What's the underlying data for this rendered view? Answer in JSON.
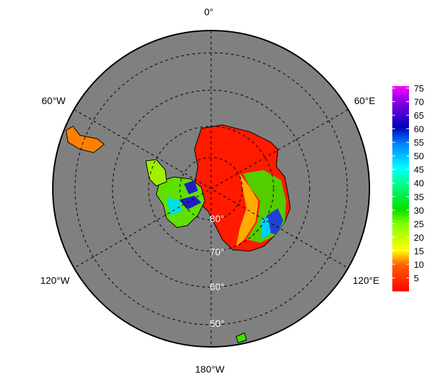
{
  "map": {
    "projection": "south polar stereographic",
    "meridian_labels": {
      "top": "0°",
      "left_upper": "60°W",
      "right_upper": "60°E",
      "left_lower": "120°W",
      "right_lower": "120°E",
      "bottom": "180°W"
    },
    "latitude_labels": [
      "80°",
      "70°",
      "60°",
      "50°"
    ],
    "background_color": "#808080"
  },
  "colorbar": {
    "ticks": [
      "75",
      "70",
      "65",
      "60",
      "55",
      "50",
      "45",
      "40",
      "35",
      "30",
      "25",
      "20",
      "15",
      "10",
      "5"
    ],
    "range": [
      0,
      75
    ],
    "colors": [
      "#ff0000",
      "#ff8000",
      "#ffff00",
      "#80ff00",
      "#00e000",
      "#00ff80",
      "#00ffff",
      "#0080ff",
      "#0000c0",
      "#8000e0",
      "#ff00ff"
    ]
  }
}
